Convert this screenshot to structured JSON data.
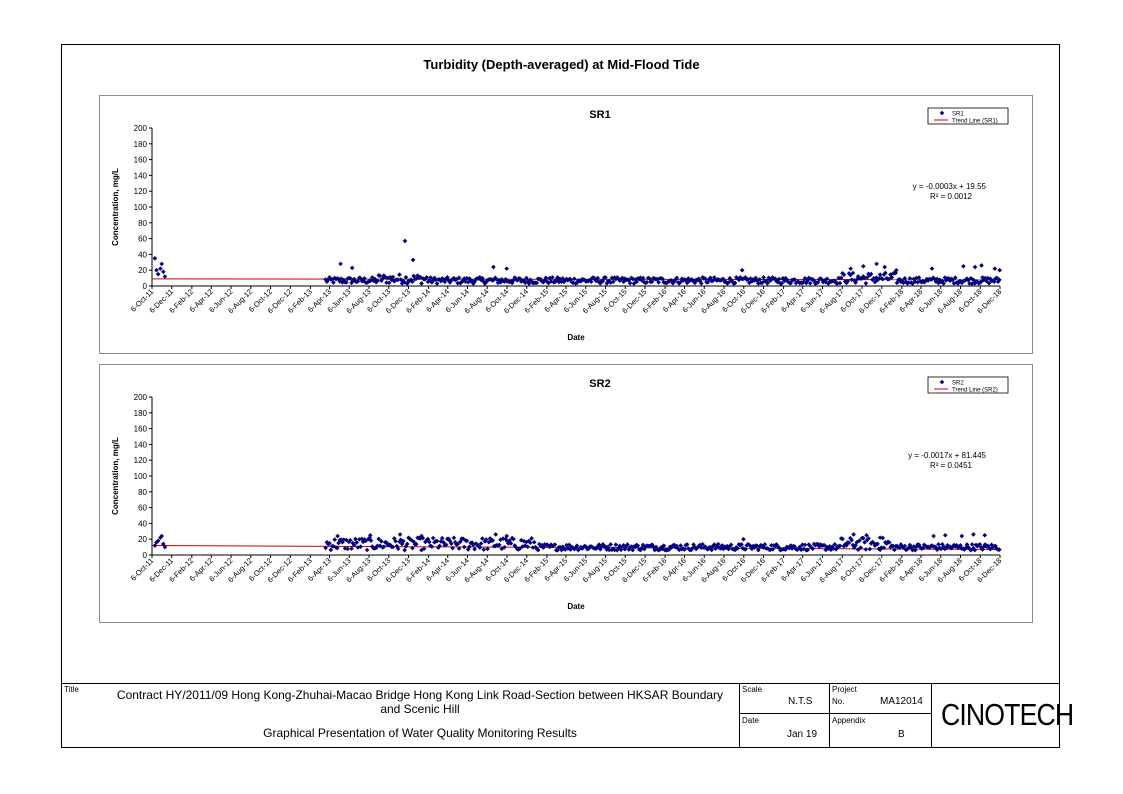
{
  "page_title": "Turbidity (Depth-averaged) at Mid-Flood Tide",
  "x_ticks": [
    "6-Oct-11",
    "6-Dec-11",
    "6-Feb-12",
    "6-Apr-12",
    "6-Jun-12",
    "6-Aug-12",
    "6-Oct-12",
    "6-Dec-12",
    "6-Feb-13",
    "6-Apr-13",
    "6-Jun-13",
    "6-Aug-13",
    "6-Oct-13",
    "6-Dec-13",
    "6-Feb-14",
    "6-Apr-14",
    "6-Jun-14",
    "6-Aug-14",
    "6-Oct-14",
    "6-Dec-14",
    "6-Feb-15",
    "6-Apr-15",
    "6-Jun-15",
    "6-Aug-15",
    "6-Oct-15",
    "6-Dec-15",
    "6-Feb-16",
    "6-Apr-16",
    "6-Jun-16",
    "6-Aug-16",
    "6-Oct-16",
    "6-Dec-16",
    "6-Feb-17",
    "6-Apr-17",
    "6-Jun-17",
    "6-Aug-17",
    "6-Oct-17",
    "6-Dec-17",
    "6-Feb-18",
    "6-Apr-18",
    "6-Jun-18",
    "6-Aug-18",
    "6-Oct-18",
    "6-Dec-18"
  ],
  "chart_data": [
    {
      "type": "scatter",
      "title": "SR1",
      "xlabel": "Date",
      "ylabel": "Concentration, mg/L",
      "ylim": [
        0,
        200
      ],
      "yticks": [
        0,
        20,
        40,
        60,
        80,
        100,
        120,
        140,
        160,
        180,
        200
      ],
      "xlim": [
        "6-Oct-11",
        "6-Dec-18"
      ],
      "legend": {
        "position": "top-right",
        "series_label": "SR1",
        "trend_label": "Trend Line (SR1)"
      },
      "trend_equation": "y = -0.0003x + 19.55",
      "trend_r2": "R² = 0.0012",
      "trend_line": {
        "start": [
          "6-Oct-11",
          9
        ],
        "end": [
          "6-Dec-18",
          8
        ]
      },
      "marker_color": "#000080",
      "trend_color": "#cc0000",
      "series": [
        {
          "name": "SR1",
          "points": [
            [
              "2011-10-15",
              35
            ],
            [
              "2011-10-20",
              20
            ],
            [
              "2011-10-25",
              15
            ],
            [
              "2011-11-01",
              22
            ],
            [
              "2011-11-05",
              28
            ],
            [
              "2011-11-10",
              18
            ],
            [
              "2011-11-15",
              12
            ],
            [
              "2013-11-25",
              57
            ],
            [
              "2013-12-20",
              33
            ],
            [
              "2013-05-10",
              28
            ],
            [
              "2013-06-15",
              23
            ],
            [
              "2014-08-25",
              24
            ],
            [
              "2014-10-05",
              22
            ],
            [
              "2016-10-01",
              20
            ],
            [
              "2017-09-01",
              22
            ],
            [
              "2017-10-10",
              25
            ],
            [
              "2017-11-20",
              28
            ],
            [
              "2017-12-15",
              24
            ],
            [
              "2018-01-20",
              20
            ],
            [
              "2018-05-10",
              22
            ],
            [
              "2018-08-15",
              25
            ],
            [
              "2018-09-20",
              24
            ],
            [
              "2018-10-10",
              26
            ],
            [
              "2018-11-20",
              22
            ],
            [
              "2018-12-05",
              20
            ]
          ]
        }
      ]
    },
    {
      "type": "scatter",
      "title": "SR2",
      "xlabel": "Date",
      "ylabel": "Concentration, mg/L",
      "ylim": [
        0,
        200
      ],
      "yticks": [
        0,
        20,
        40,
        60,
        80,
        100,
        120,
        140,
        160,
        180,
        200
      ],
      "xlim": [
        "6-Oct-11",
        "6-Dec-18"
      ],
      "legend": {
        "position": "top-right",
        "series_label": "SR2",
        "trend_label": "Trend Line (SR2)"
      },
      "trend_equation": "y = -0.0017x + 81.445",
      "trend_r2": "R² = 0.0451",
      "trend_line": {
        "start": [
          "6-Oct-11",
          12
        ],
        "end": [
          "6-Dec-18",
          7
        ]
      },
      "marker_color": "#000080",
      "trend_color": "#cc0000",
      "series": [
        {
          "name": "SR2",
          "points": [
            [
              "2011-10-15",
              12
            ],
            [
              "2011-10-20",
              16
            ],
            [
              "2011-10-25",
              18
            ],
            [
              "2011-11-01",
              22
            ],
            [
              "2011-11-05",
              24
            ],
            [
              "2011-11-10",
              14
            ],
            [
              "2011-11-15",
              10
            ],
            [
              "2013-05-01",
              24
            ],
            [
              "2013-08-10",
              25
            ],
            [
              "2013-11-10",
              26
            ],
            [
              "2014-01-15",
              24
            ],
            [
              "2014-09-01",
              26
            ],
            [
              "2014-10-05",
              24
            ],
            [
              "2016-10-05",
              20
            ],
            [
              "2017-09-10",
              26
            ],
            [
              "2017-10-20",
              25
            ],
            [
              "2017-12-01",
              22
            ],
            [
              "2018-05-15",
              24
            ],
            [
              "2018-06-20",
              25
            ],
            [
              "2018-08-10",
              24
            ],
            [
              "2018-09-15",
              26
            ],
            [
              "2018-10-20",
              25
            ]
          ]
        }
      ]
    }
  ],
  "title_block": {
    "title_label": "Title",
    "title_line1": "Contract HY/2011/09 Hong Kong-Zhuhai-Macao Bridge Hong Kong Link Road-Section between HKSAR Boundary",
    "title_line2": "and Scenic Hill",
    "subtitle": "Graphical Presentation of Water Quality Monitoring Results",
    "scale_label": "Scale",
    "scale_value": "N.T.S",
    "project_label": "Project",
    "project_no_label": "No.",
    "project_no_value": "MA12014",
    "date_label": "Date",
    "date_value": "Jan 19",
    "appendix_label": "Appendix",
    "appendix_value": "B",
    "logo_text": "CINOTECH"
  }
}
